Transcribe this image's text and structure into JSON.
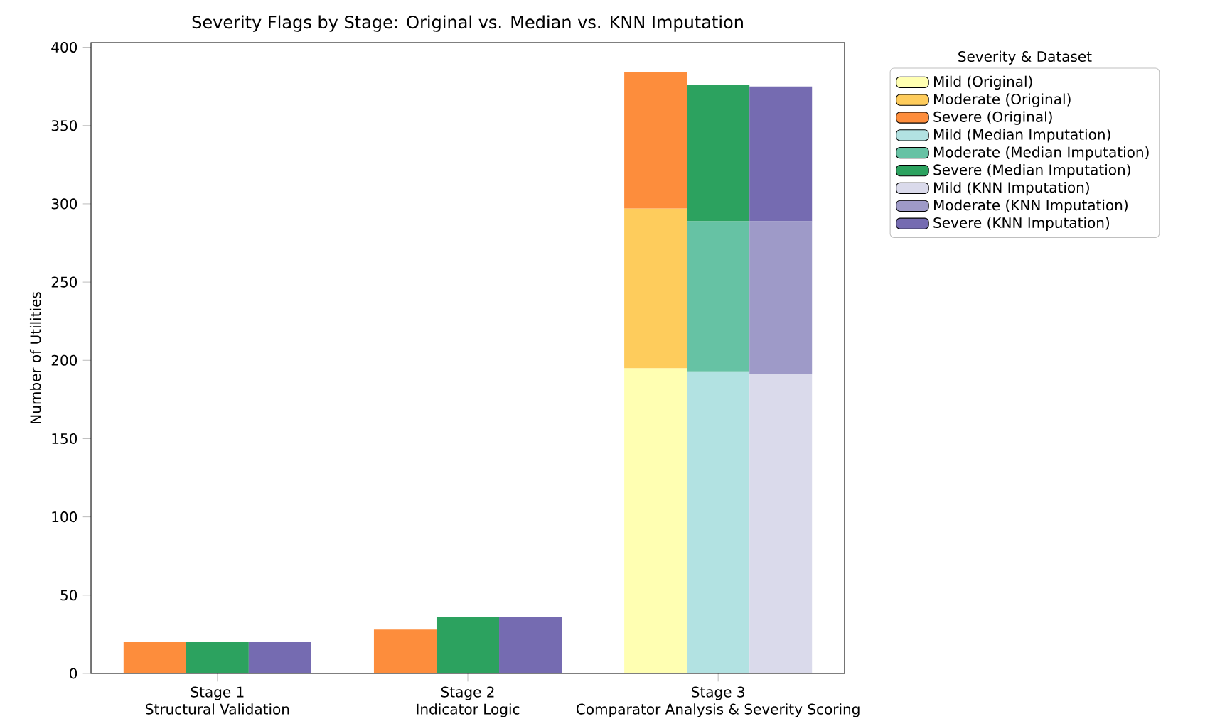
{
  "chart_data": {
    "type": "bar",
    "stacked": true,
    "title": "Severity Flags by Stage: Original vs. Median vs. KNN Imputation",
    "ylabel": "Number of Utilities",
    "legend_title": "Severity & Dataset",
    "legend": "top right",
    "categories": [
      null,
      "Stage 1\nStructural Validation",
      null,
      null,
      null,
      "Stage 2\nIndicator Logic",
      null,
      null,
      null,
      "Stage 3\nComparator Analysis & Severity Scoring",
      null
    ],
    "ylim": [
      0,
      403
    ],
    "yticks": [
      0,
      50,
      100,
      150,
      200,
      250,
      300,
      350,
      400
    ],
    "series": [
      {
        "name": "Mild (Original)",
        "color": "#ffffb2",
        "values": [
          0,
          null,
          null,
          null,
          0,
          null,
          null,
          null,
          195,
          null,
          null
        ]
      },
      {
        "name": "Moderate (Original)",
        "color": "#fecc5c",
        "values": [
          0,
          null,
          null,
          null,
          0,
          null,
          null,
          null,
          102,
          null,
          null
        ]
      },
      {
        "name": "Severe (Original)",
        "color": "#fd8d3c",
        "values": [
          20,
          null,
          null,
          null,
          28,
          null,
          null,
          null,
          87,
          null,
          null
        ]
      },
      {
        "name": "Mild (Median Imputation)",
        "color": "#b2e2e2",
        "values": [
          null,
          0,
          null,
          null,
          null,
          0,
          null,
          null,
          null,
          193,
          null
        ]
      },
      {
        "name": "Moderate (Median Imputation)",
        "color": "#66c2a4",
        "values": [
          null,
          0,
          null,
          null,
          null,
          0,
          null,
          null,
          null,
          96,
          null
        ]
      },
      {
        "name": "Severe (Median Imputation)",
        "color": "#2ca25f",
        "values": [
          null,
          20,
          null,
          null,
          null,
          36,
          null,
          null,
          null,
          87,
          null
        ]
      },
      {
        "name": "Mild (KNN Imputation)",
        "color": "#dadaeb",
        "values": [
          null,
          null,
          0,
          null,
          null,
          null,
          0,
          null,
          null,
          null,
          191
        ]
      },
      {
        "name": "Moderate (KNN Imputation)",
        "color": "#9e9ac8",
        "values": [
          null,
          null,
          0,
          null,
          null,
          null,
          0,
          null,
          null,
          null,
          98
        ]
      },
      {
        "name": "Severe (KNN Imputation)",
        "color": "#756bb1",
        "values": [
          null,
          null,
          20,
          null,
          null,
          null,
          36,
          null,
          null,
          null,
          86
        ]
      }
    ]
  }
}
